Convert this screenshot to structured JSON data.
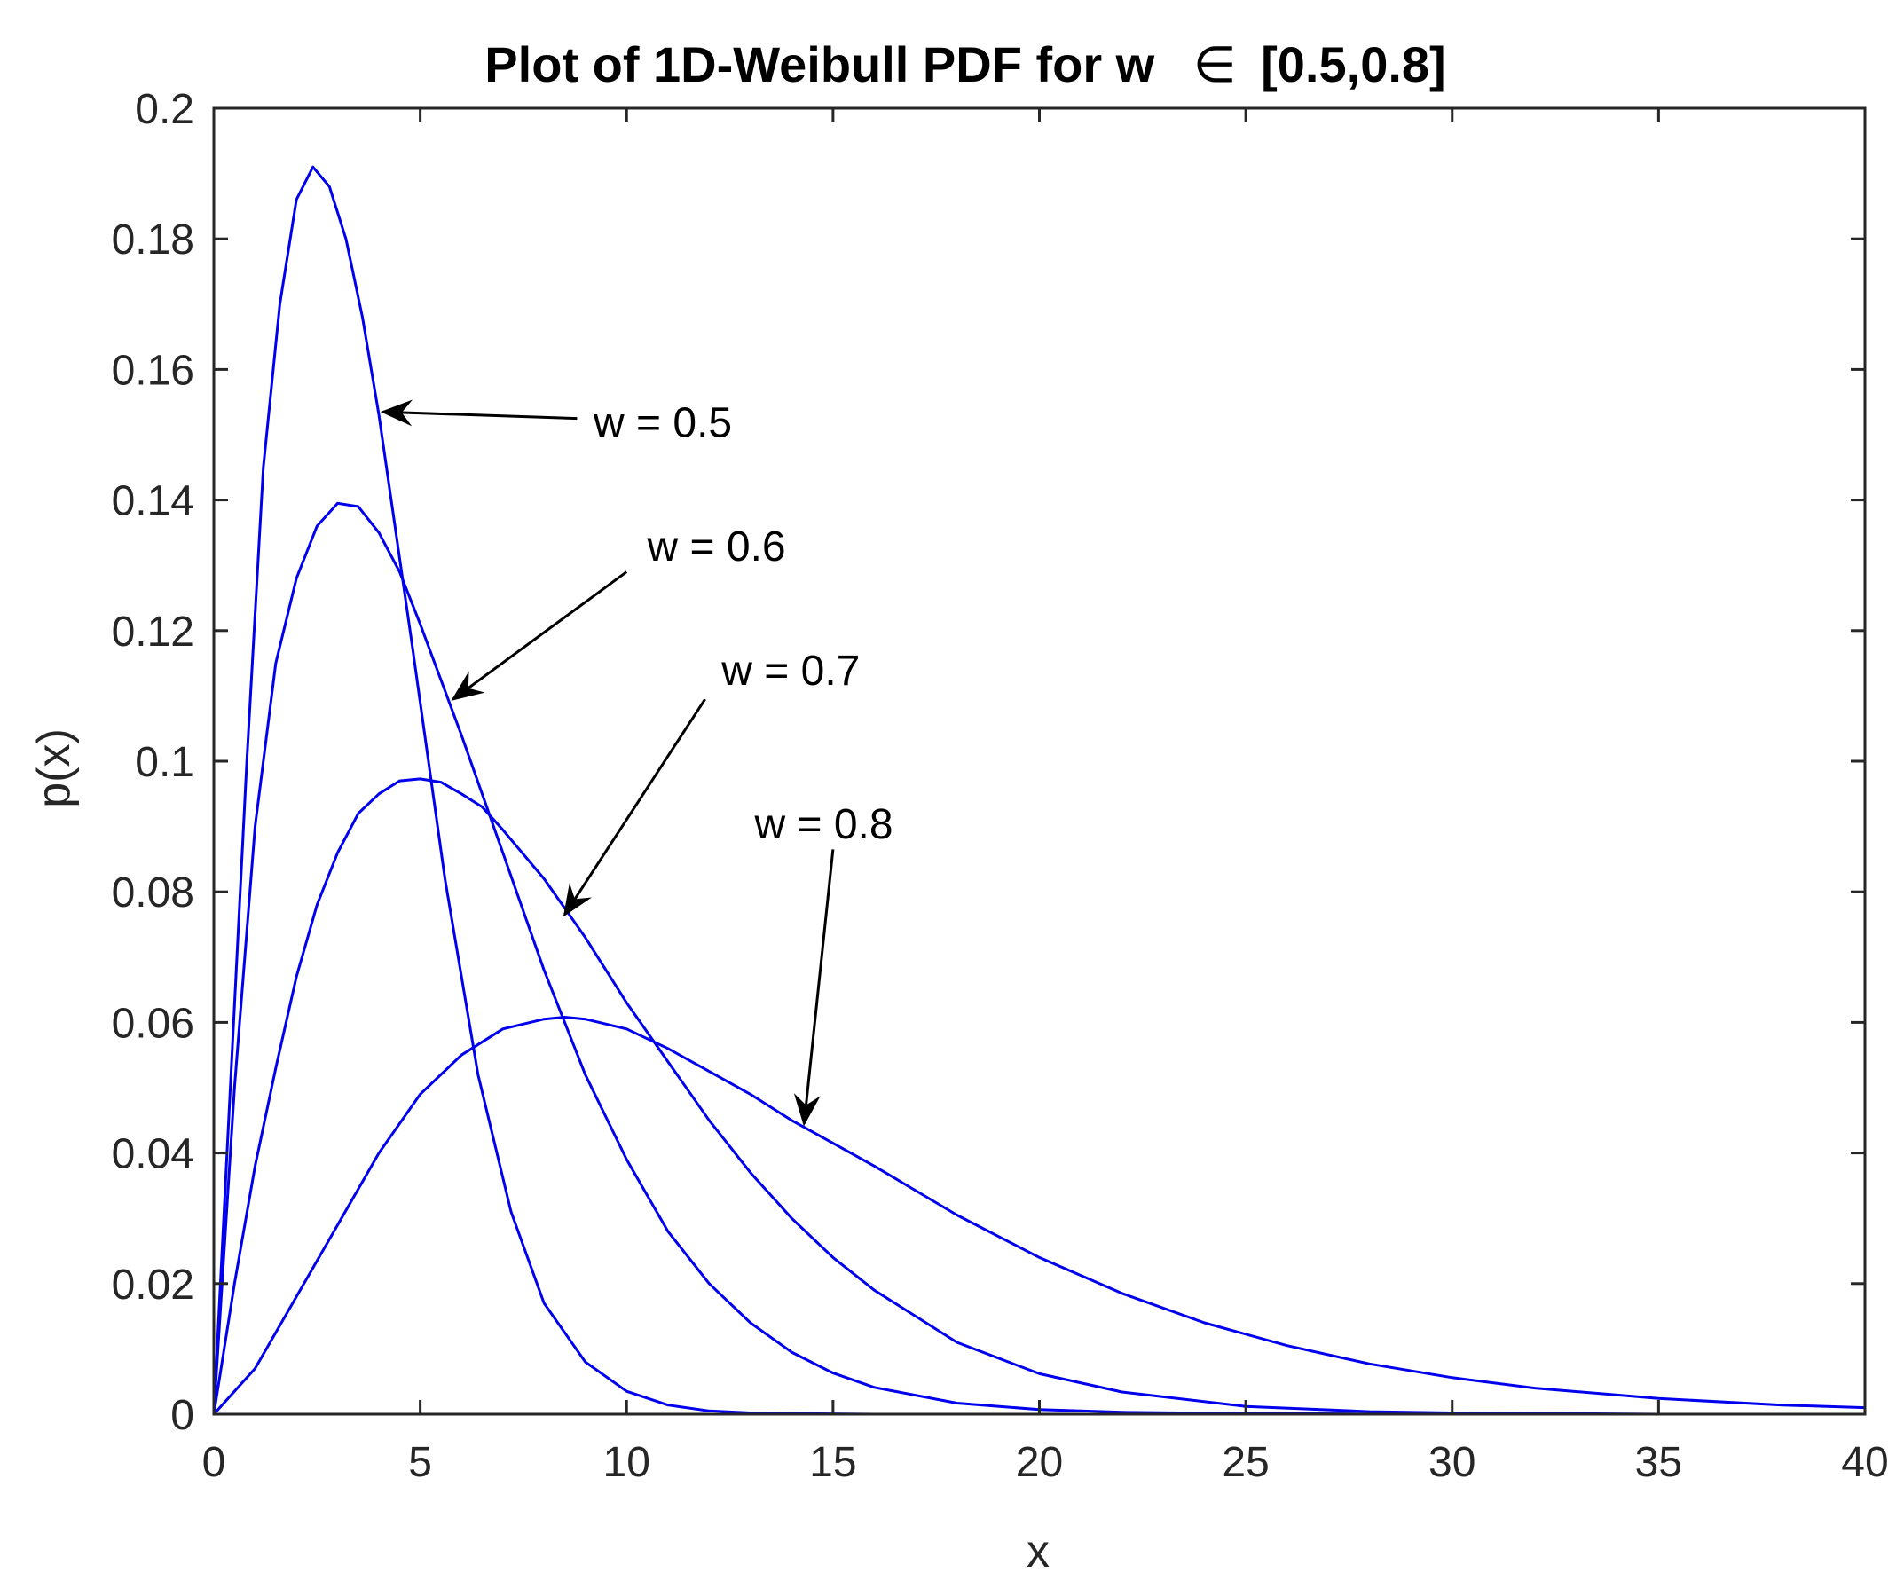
{
  "chart_data": {
    "type": "line",
    "title_prefix": "Plot of 1D-Weibull PDF for w",
    "title_symbol": "∈",
    "title_suffix": "[0.5,0.8]",
    "xlabel": "x",
    "ylabel": "p(x)",
    "xlim": [
      0,
      40
    ],
    "ylim": [
      0,
      0.2
    ],
    "xticks": [
      0,
      5,
      10,
      15,
      20,
      25,
      30,
      35,
      40
    ],
    "xtick_labels": [
      "0",
      "5",
      "10",
      "15",
      "20",
      "25",
      "30",
      "35",
      "40"
    ],
    "yticks": [
      0,
      0.02,
      0.04,
      0.06,
      0.08,
      0.1,
      0.12,
      0.14,
      0.16,
      0.18,
      0.2
    ],
    "ytick_labels": [
      "0",
      "0.02",
      "0.04",
      "0.06",
      "0.08",
      "0.1",
      "0.12",
      "0.14",
      "0.16",
      "0.18",
      "0.2"
    ],
    "grid": false,
    "line_color": "#0000ee",
    "series": [
      {
        "label": "w = 0.5",
        "x": [
          0,
          0.4,
          0.8,
          1.2,
          1.6,
          2.0,
          2.4,
          2.8,
          3.2,
          3.6,
          4.0,
          4.8,
          5.6,
          6.4,
          7.2,
          8.0,
          9.0,
          10.0,
          11.0,
          12.0,
          13.0,
          14.0,
          16.0,
          18.0,
          20.0,
          25.0,
          30.0,
          40.0
        ],
        "y": [
          0,
          0.05,
          0.1,
          0.145,
          0.17,
          0.186,
          0.191,
          0.188,
          0.18,
          0.168,
          0.153,
          0.118,
          0.082,
          0.052,
          0.031,
          0.017,
          0.008,
          0.0035,
          0.0014,
          0.0005,
          0.0002,
          0.0001,
          0,
          0,
          0,
          0,
          0,
          0
        ]
      },
      {
        "label": "w = 0.6",
        "x": [
          0,
          0.5,
          1.0,
          1.5,
          2.0,
          2.5,
          3.0,
          3.5,
          4.0,
          4.5,
          5.0,
          6.0,
          7.0,
          8.0,
          9.0,
          10.0,
          11.0,
          12.0,
          13.0,
          14.0,
          15.0,
          16.0,
          18.0,
          20.0,
          22.0,
          25.0,
          30.0,
          35.0,
          40.0
        ],
        "y": [
          0,
          0.05,
          0.09,
          0.115,
          0.128,
          0.136,
          0.1395,
          0.139,
          0.135,
          0.129,
          0.121,
          0.104,
          0.086,
          0.068,
          0.052,
          0.039,
          0.028,
          0.02,
          0.014,
          0.0095,
          0.0063,
          0.0041,
          0.0017,
          0.0007,
          0.0003,
          0.0001,
          0,
          0,
          0
        ]
      },
      {
        "label": "w = 0.7",
        "x": [
          0,
          0.5,
          1.0,
          1.5,
          2.0,
          2.5,
          3.0,
          3.5,
          4.0,
          4.5,
          5.0,
          5.5,
          6.0,
          6.5,
          7.0,
          8.0,
          9.0,
          10.0,
          11.0,
          12.0,
          13.0,
          14.0,
          15.0,
          16.0,
          18.0,
          20.0,
          22.0,
          25.0,
          28.0,
          30.0,
          35.0,
          40.0
        ],
        "y": [
          0,
          0.02,
          0.038,
          0.053,
          0.067,
          0.078,
          0.086,
          0.092,
          0.095,
          0.097,
          0.0973,
          0.0968,
          0.095,
          0.093,
          0.0895,
          0.082,
          0.073,
          0.063,
          0.054,
          0.045,
          0.037,
          0.03,
          0.024,
          0.019,
          0.011,
          0.0062,
          0.0034,
          0.0012,
          0.0004,
          0.0002,
          0,
          0
        ]
      },
      {
        "label": "w = 0.8",
        "x": [
          0,
          1.0,
          2.0,
          3.0,
          4.0,
          5.0,
          6.0,
          7.0,
          8.0,
          8.5,
          9.0,
          10.0,
          11.0,
          12.0,
          13.0,
          14.0,
          15.0,
          16.0,
          18.0,
          20.0,
          22.0,
          24.0,
          26.0,
          28.0,
          30.0,
          32.0,
          35.0,
          38.0,
          40.0
        ],
        "y": [
          0,
          0.007,
          0.018,
          0.029,
          0.04,
          0.049,
          0.055,
          0.059,
          0.0605,
          0.0608,
          0.0605,
          0.059,
          0.056,
          0.0525,
          0.049,
          0.045,
          0.0415,
          0.038,
          0.0305,
          0.024,
          0.0185,
          0.014,
          0.0105,
          0.0077,
          0.0056,
          0.004,
          0.0024,
          0.0014,
          0.001
        ]
      }
    ],
    "annotations": [
      {
        "label": "w = 0.5",
        "label_x": 9.2,
        "label_y": 0.152,
        "tail_x": 8.8,
        "tail_y": 0.1525,
        "head_x": 4.1,
        "head_y": 0.1535
      },
      {
        "label": "w = 0.6",
        "label_x": 10.5,
        "label_y": 0.133,
        "tail_x": 10.0,
        "tail_y": 0.129,
        "head_x": 5.8,
        "head_y": 0.1095
      },
      {
        "label": "w = 0.7",
        "label_x": 12.3,
        "label_y": 0.114,
        "tail_x": 11.9,
        "tail_y": 0.1095,
        "head_x": 8.5,
        "head_y": 0.0765
      },
      {
        "label": "w = 0.8",
        "label_x": 13.1,
        "label_y": 0.0905,
        "tail_x": 15.0,
        "tail_y": 0.0865,
        "head_x": 14.3,
        "head_y": 0.0445
      }
    ]
  }
}
